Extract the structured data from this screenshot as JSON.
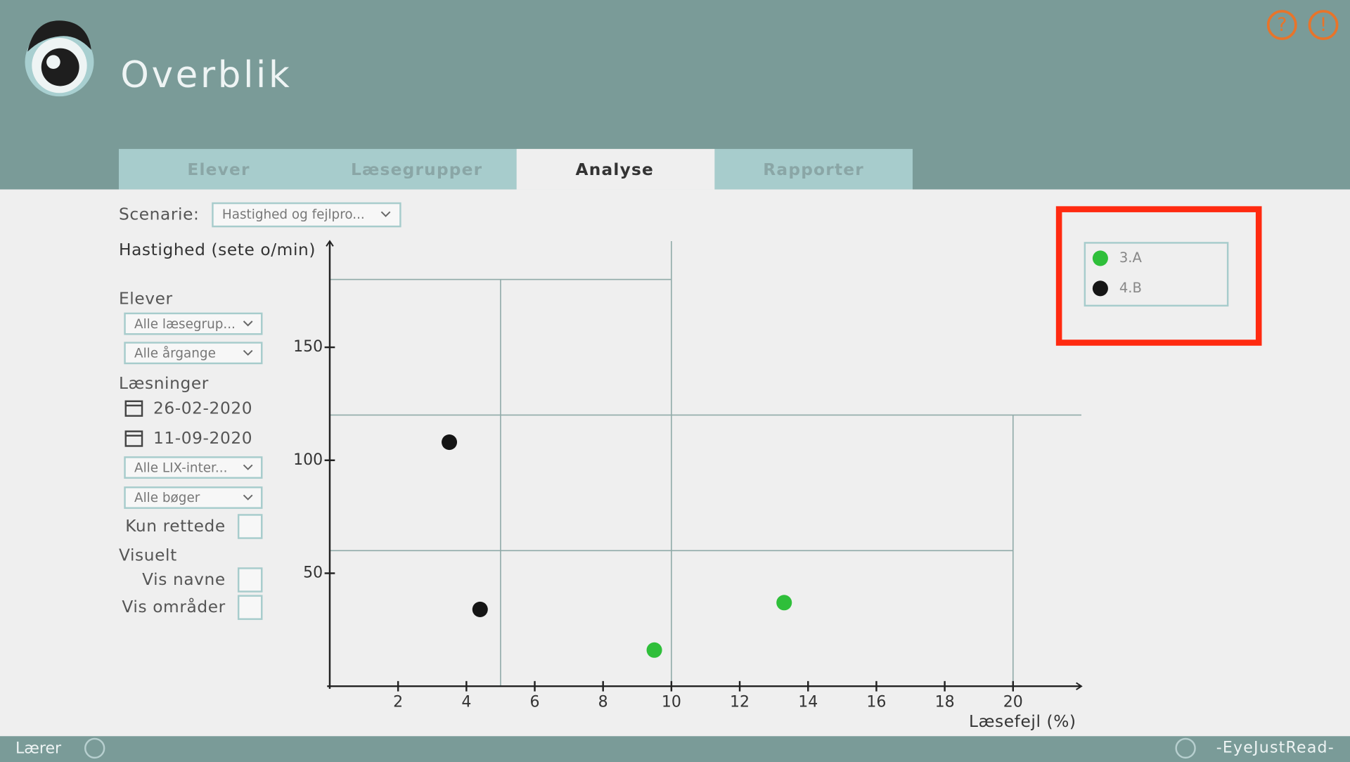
{
  "header": {
    "title": "Overblik"
  },
  "tabs": [
    "Elever",
    "Læsegrupper",
    "Analyse",
    "Rapporter"
  ],
  "scenario": {
    "label": "Scenarie:",
    "value": "Hastighed og fejlpro..."
  },
  "sidebar": {
    "elever_title": "Elever",
    "elever_dropdowns": [
      "Alle læsegrup...",
      "Alle årgange"
    ],
    "readings_title": "Læsninger",
    "dates": [
      "26-02-2020",
      "11-09-2020"
    ],
    "reading_dropdowns": [
      "Alle LIX-inter...",
      "Alle bøger"
    ],
    "only_corrected": "Kun rettede",
    "visual_title": "Visuelt",
    "show_names": "Vis navne",
    "show_areas": "Vis områder"
  },
  "footer": {
    "user": "Lærer",
    "brand": "-EyeJustRead-"
  },
  "chart_data": {
    "type": "scatter",
    "y_label": "Hastighed (sete o/min)",
    "x_label": "Læsefejl (%)",
    "series": [
      {
        "name": "3.A",
        "color": "#2fbf3a",
        "x": [
          9.5,
          13.3
        ],
        "values": [
          16,
          37
        ]
      },
      {
        "name": "4.B",
        "color": "#151515",
        "x": [
          3.5,
          4.4
        ],
        "values": [
          108,
          34
        ]
      }
    ],
    "xlim": [
      0,
      22
    ],
    "ylim": [
      0,
      197
    ],
    "xticks": [
      2,
      4,
      6,
      8,
      10,
      12,
      14,
      16,
      18,
      20
    ],
    "yticks": [
      50,
      100,
      150
    ],
    "region_lines": [
      {
        "x": [
          5,
          5
        ],
        "y": [
          0,
          180
        ]
      },
      {
        "x": [
          10,
          10
        ],
        "y": [
          0,
          197
        ]
      },
      {
        "x": [
          20,
          20
        ],
        "y": [
          0,
          120
        ]
      },
      {
        "x": [
          0,
          10
        ],
        "y": [
          180,
          180
        ]
      },
      {
        "x": [
          0,
          22
        ],
        "y": [
          120,
          120
        ]
      },
      {
        "x": [
          0,
          20
        ],
        "y": [
          60,
          60
        ]
      }
    ],
    "legend": "top-right"
  }
}
